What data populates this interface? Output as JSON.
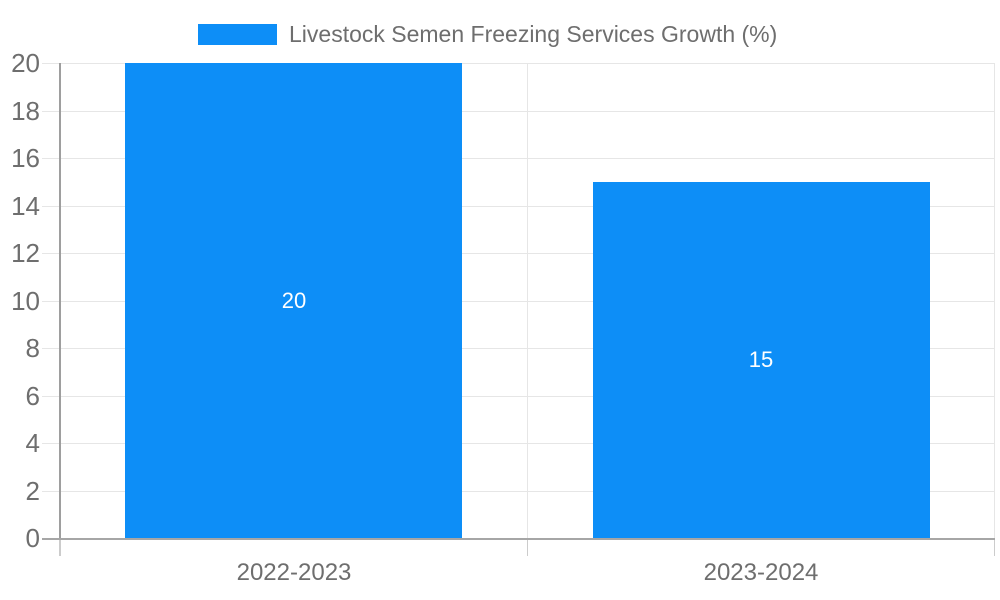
{
  "legend": {
    "label": "Livestock Semen Freezing Services Growth (%)"
  },
  "colors": {
    "bar": "#0d8ef7",
    "grid": "#e6e6e6",
    "axis_line": "#9e9e9e",
    "baseline": "#a6a6a6",
    "tick_below": "#cccccc",
    "text_gray": "#6e6e6e",
    "data_label": "#ffffff",
    "background": "#ffffff"
  },
  "chart_data": {
    "type": "bar",
    "title": "Livestock Semen Freezing Services Growth (%)",
    "categories": [
      "2022-2023",
      "2023-2024"
    ],
    "values": [
      20,
      15
    ],
    "data_labels": [
      "20",
      "15"
    ],
    "series": [
      {
        "name": "Livestock Semen Freezing Services Growth (%)",
        "values": [
          20,
          15
        ]
      }
    ],
    "xlabel": "",
    "ylabel": "",
    "ylim": [
      0,
      20
    ],
    "ytick_step": 2,
    "yticks": [
      0,
      2,
      4,
      6,
      8,
      10,
      12,
      14,
      16,
      18,
      20
    ],
    "grid": true,
    "legend_position": "top-center",
    "bar_label_position": "inside-center"
  }
}
